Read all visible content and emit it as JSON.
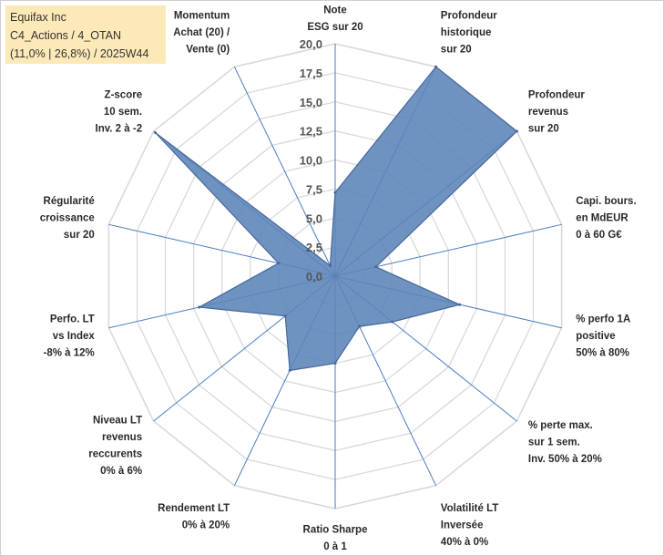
{
  "info_box": {
    "company": "Equifax Inc",
    "portfolio": "C4_Actions / 4_OTAN",
    "stats": "(11,0% | 26,8%) / 2025W44"
  },
  "colors": {
    "fill": "#5b84b8",
    "stroke": "#46679a",
    "grid": "#d9d9d9",
    "spoke": "#4a7bc4",
    "info_bg": "#fde9b8"
  },
  "chart_data": {
    "type": "radar",
    "r_min": 0,
    "r_max": 20,
    "ticks": [
      "0,0",
      "2,5",
      "5,0",
      "7,5",
      "10,0",
      "12,5",
      "15,0",
      "17,5",
      "20,0"
    ],
    "axes": [
      [
        "Note",
        "ESG sur 20"
      ],
      [
        "Profondeur",
        "historique",
        "sur 20"
      ],
      [
        "Profondeur",
        "revenus",
        "sur 20"
      ],
      [
        "Capi. bours.",
        "en MdEUR",
        "0 à 60 G€"
      ],
      [
        "% perfo 1A",
        "positive",
        "50% à 80%"
      ],
      [
        "% perte max.",
        "sur 1 sem.",
        "Inv. 50% à 20%"
      ],
      [
        "Volatilité LT",
        "Inversée",
        "40% à 0%"
      ],
      [
        "Ratio Sharpe",
        "0 à 1"
      ],
      [
        "Rendement LT",
        "0% à 20%"
      ],
      [
        "Niveau LT",
        "revenus",
        "reccurents",
        "0% à 6%"
      ],
      [
        "Perfo. LT",
        "vs Index",
        "-8% à 12%"
      ],
      [
        "Régularité",
        "croissance",
        "sur 20"
      ],
      [
        "Z-score",
        "10 sem.",
        "Inv. 2 à -2"
      ],
      [
        "Momentum",
        "Achat (20) /",
        "Vente (0)"
      ]
    ],
    "series": [
      {
        "values": [
          7.2,
          20.0,
          20.0,
          3.6,
          11.0,
          6.3,
          4.8,
          7.5,
          9.0,
          5.5,
          12.0,
          5.0,
          19.8,
          1.0
        ]
      }
    ]
  }
}
